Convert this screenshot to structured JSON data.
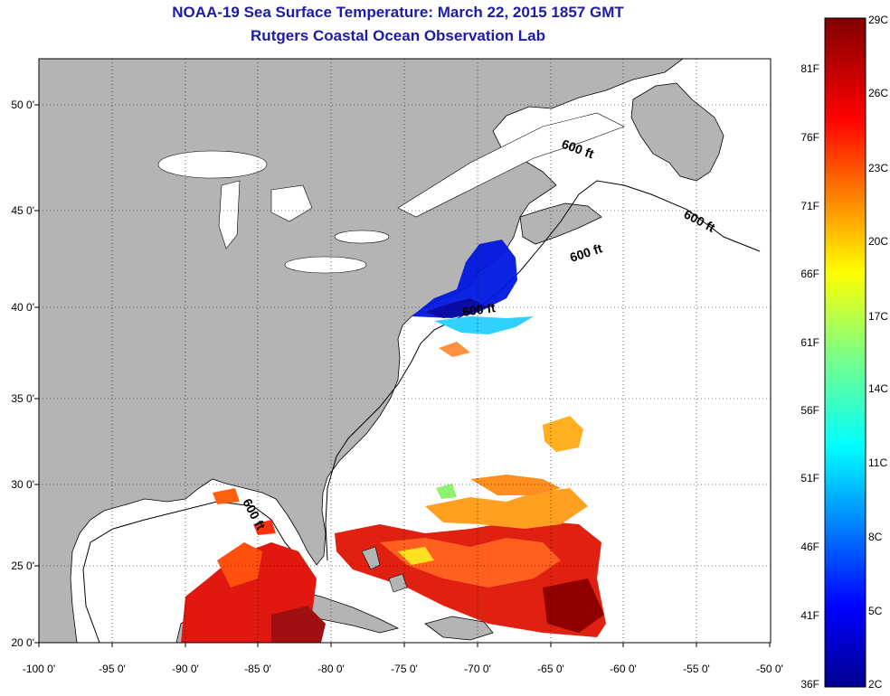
{
  "title": {
    "line1": "NOAA-19 Sea Surface Temperature:  March 22, 2015 1857 GMT",
    "line2": "Rutgers Coastal Ocean Observation Lab"
  },
  "map": {
    "lon_ticks": [
      "-100 0'",
      "-95 0'",
      "-90 0'",
      "-85 0'",
      "-80 0'",
      "-75 0'",
      "-70 0'",
      "-65 0'",
      "-60 0'",
      "-55 0'",
      "-50 0'"
    ],
    "lat_ticks": [
      "50 0'",
      "45 0'",
      "40 0'",
      "35 0'",
      "30 0'",
      "25 0'",
      "20 0'"
    ],
    "depth_labels": [
      "600 ft",
      "600 ft",
      "600 ft",
      "600 ft",
      "600 ft"
    ],
    "colors": {
      "land": "#b4b4b4",
      "ocean": "#ffffff"
    }
  },
  "colorbar": {
    "fahrenheit": [
      "81F",
      "76F",
      "71F",
      "66F",
      "61F",
      "56F",
      "51F",
      "46F",
      "41F",
      "36F"
    ],
    "celsius": [
      "29C",
      "26C",
      "23C",
      "20C",
      "17C",
      "14C",
      "11C",
      "8C",
      "5C",
      "2C"
    ],
    "palette": [
      "#00008f",
      "#0000ff",
      "#0080ff",
      "#00ffff",
      "#80ff80",
      "#ffff00",
      "#ff8000",
      "#ff0000",
      "#800000"
    ]
  }
}
